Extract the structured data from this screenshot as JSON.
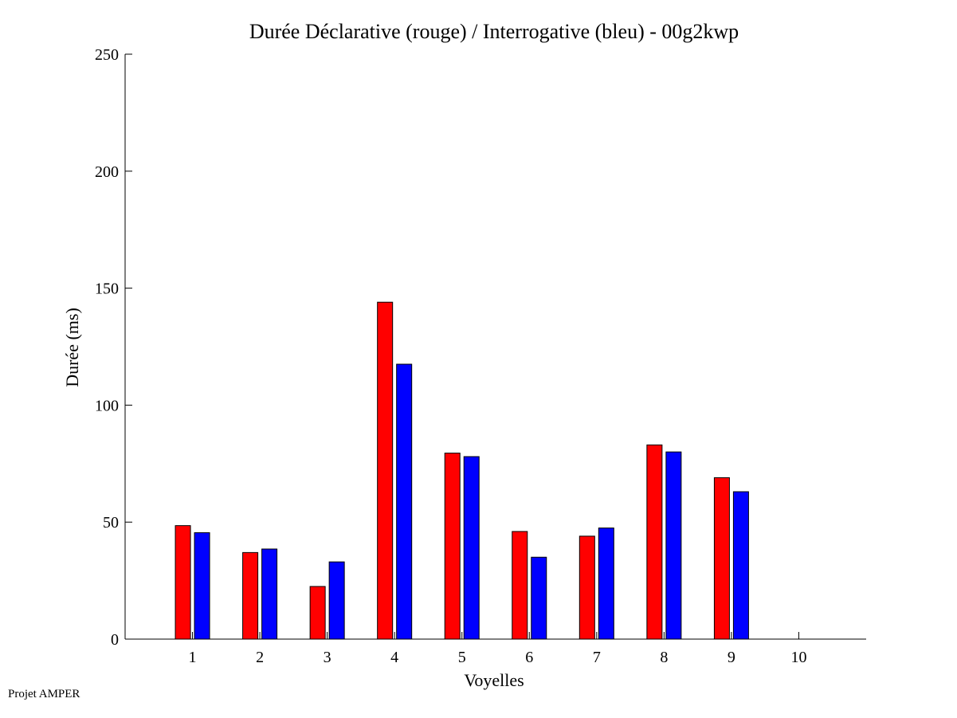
{
  "footer": {
    "text": "Projet AMPER"
  },
  "colors": {
    "series_1": "#ff0000",
    "series_2": "#0000ff",
    "axis": "#000000"
  },
  "chart_data": {
    "type": "bar",
    "title": "Durée Déclarative (rouge) / Interrogative (bleu) - 00g2kwp",
    "xlabel": "Voyelles",
    "ylabel": "Durée (ms)",
    "ylim": [
      0,
      250
    ],
    "yticks": [
      0,
      50,
      100,
      150,
      200,
      250
    ],
    "xlim": [
      0,
      11
    ],
    "categories": [
      "1",
      "2",
      "3",
      "4",
      "5",
      "6",
      "7",
      "8",
      "9",
      "10"
    ],
    "series": [
      {
        "values": [
          48.5,
          37,
          22.5,
          144,
          79.5,
          46,
          44,
          83,
          69,
          null
        ]
      },
      {
        "values": [
          45.5,
          38.5,
          33,
          117.5,
          78,
          35,
          47.5,
          80,
          63,
          null
        ]
      }
    ],
    "grid": false,
    "legend": "none"
  }
}
